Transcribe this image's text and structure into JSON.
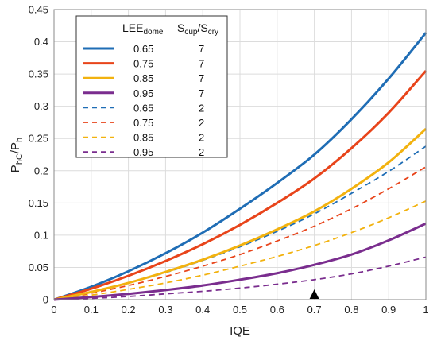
{
  "chart_data": {
    "type": "line",
    "xlabel": "IQE",
    "ylabel": "P",
    "ylabel_sub": "hC",
    "ylabel_div": "/P",
    "ylabel_div_sub": "h",
    "xlim": [
      0,
      1
    ],
    "ylim": [
      0,
      0.45
    ],
    "grid": true,
    "legend_placement": "top-left",
    "legend_headers": {
      "col1_base": "LEE",
      "col1_sub": "dome",
      "col2_base_a": "S",
      "col2_sub_a": "cup",
      "col2_mid": "/S",
      "col2_sub_b": "cry"
    },
    "x_ticks": [
      "0",
      "0.1",
      "0.2",
      "0.3",
      "0.4",
      "0.5",
      "0.6",
      "0.7",
      "0.8",
      "0.9",
      "1"
    ],
    "y_ticks": [
      "0",
      "0.05",
      "0.1",
      "0.15",
      "0.2",
      "0.25",
      "0.3",
      "0.35",
      "0.4",
      "0.45"
    ],
    "x": [
      0.0,
      0.1,
      0.2,
      0.3,
      0.4,
      0.5,
      0.6,
      0.7,
      0.8,
      0.9,
      1.0
    ],
    "marker_x": 0.7,
    "series": [
      {
        "lee": "0.65",
        "ratio": "7",
        "color": "#1f6db5",
        "dash": "solid",
        "values": [
          0,
          0.02,
          0.044,
          0.072,
          0.104,
          0.141,
          0.181,
          0.225,
          0.28,
          0.343,
          0.414
        ]
      },
      {
        "lee": "0.75",
        "ratio": "7",
        "color": "#e8441a",
        "dash": "solid",
        "values": [
          0,
          0.017,
          0.037,
          0.06,
          0.086,
          0.116,
          0.15,
          0.188,
          0.235,
          0.29,
          0.355
        ]
      },
      {
        "lee": "0.85",
        "ratio": "7",
        "color": "#f2b20f",
        "dash": "solid",
        "values": [
          0,
          0.012,
          0.026,
          0.043,
          0.062,
          0.084,
          0.109,
          0.137,
          0.172,
          0.213,
          0.265
        ]
      },
      {
        "lee": "0.95",
        "ratio": "7",
        "color": "#7a2d8e",
        "dash": "solid",
        "values": [
          0,
          0.004,
          0.009,
          0.015,
          0.022,
          0.031,
          0.041,
          0.054,
          0.07,
          0.092,
          0.118
        ]
      },
      {
        "lee": "0.65",
        "ratio": "2",
        "color": "#1f6db5",
        "dash": "dashed",
        "values": [
          0,
          0.012,
          0.026,
          0.042,
          0.061,
          0.082,
          0.106,
          0.133,
          0.165,
          0.199,
          0.238
        ]
      },
      {
        "lee": "0.75",
        "ratio": "2",
        "color": "#e8441a",
        "dash": "dashed",
        "values": [
          0,
          0.01,
          0.022,
          0.036,
          0.052,
          0.07,
          0.091,
          0.114,
          0.141,
          0.172,
          0.206
        ]
      },
      {
        "lee": "0.85",
        "ratio": "2",
        "color": "#f2b20f",
        "dash": "dashed",
        "values": [
          0,
          0.007,
          0.016,
          0.026,
          0.038,
          0.052,
          0.067,
          0.084,
          0.104,
          0.127,
          0.153
        ]
      },
      {
        "lee": "0.95",
        "ratio": "2",
        "color": "#7a2d8e",
        "dash": "dashed",
        "values": [
          0,
          0.002,
          0.005,
          0.009,
          0.013,
          0.018,
          0.024,
          0.031,
          0.04,
          0.052,
          0.066
        ]
      }
    ]
  }
}
